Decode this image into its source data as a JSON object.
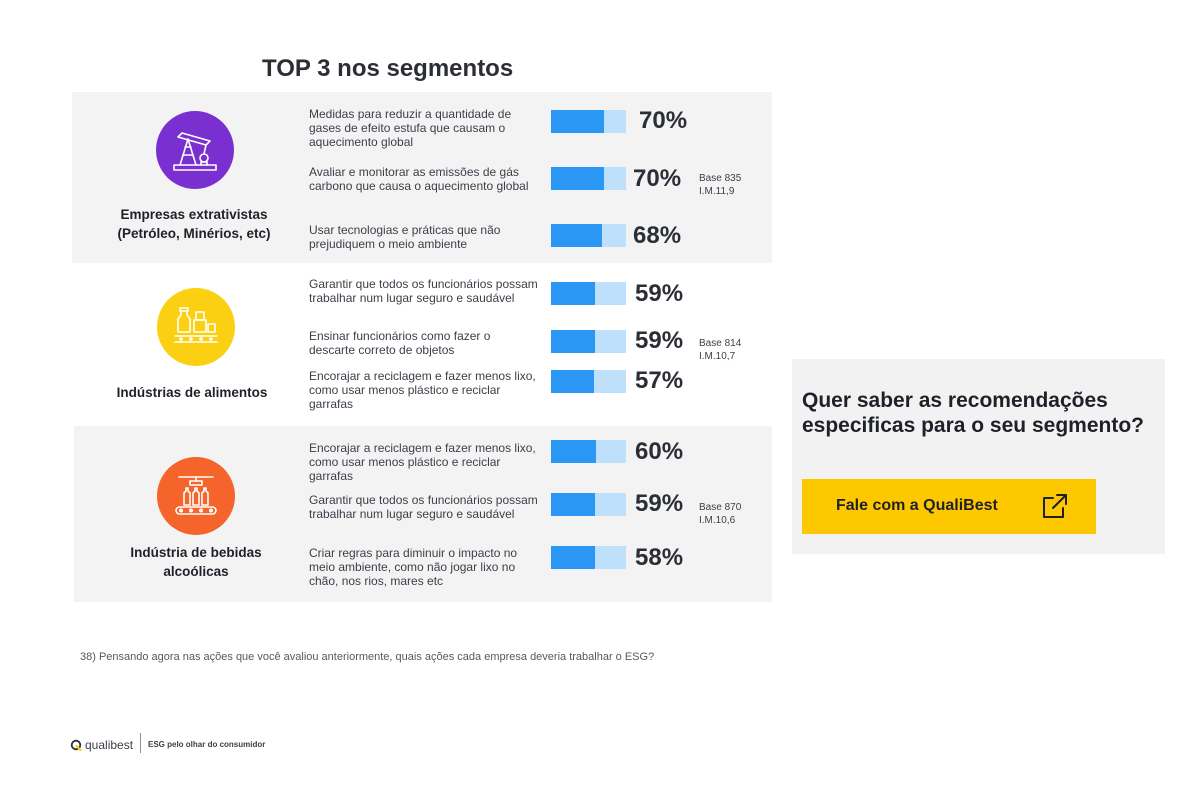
{
  "title": "TOP 3 nos segmentos",
  "colors": {
    "bar_fill": "#2a97f5",
    "bar_track": "#bfe0fa",
    "segment_1": "#7a2fd0",
    "segment_2": "#fcd012",
    "segment_3": "#f5652b",
    "cta_button": "#fec800"
  },
  "chart_data": {
    "type": "bar",
    "orientation": "horizontal",
    "xlim": [
      0,
      100
    ],
    "unit": "%",
    "segments": [
      {
        "name": "Empresas extrativistas (Petróleo, Minérios, etc)",
        "icon": "oil-pump-icon",
        "base": "Base 835",
        "im": "I.M.11,9",
        "items": [
          {
            "label": "Medidas para reduzir a quantidade de gases de efeito estufa que causam o aquecimento global",
            "value": 70,
            "value_label": "70%"
          },
          {
            "label": "Avaliar e monitorar as emissões de gás carbono que causa o aquecimento global",
            "value": 70,
            "value_label": "70%"
          },
          {
            "label": "Usar tecnologias e práticas que não prejudiquem o meio ambiente",
            "value": 68,
            "value_label": "68%"
          }
        ]
      },
      {
        "name": "Indústrias de alimentos",
        "icon": "food-factory-icon",
        "base": "Base 814",
        "im": "I.M.10,7",
        "items": [
          {
            "label": "Garantir que todos os funcionários possam trabalhar num lugar seguro e saudável",
            "value": 59,
            "value_label": "59%"
          },
          {
            "label": "Ensinar funcionários como fazer o descarte correto de objetos",
            "value": 59,
            "value_label": "59%"
          },
          {
            "label": "Encorajar a reciclagem e fazer menos lixo, como usar menos plástico e reciclar garrafas",
            "value": 57,
            "value_label": "57%"
          }
        ]
      },
      {
        "name": "Indústria de bebidas alcoólicas",
        "icon": "bottling-line-icon",
        "base": "Base 870",
        "im": "I.M.10,6",
        "items": [
          {
            "label": "Encorajar a reciclagem e fazer menos lixo, como usar menos plástico e reciclar garrafas",
            "value": 60,
            "value_label": "60%"
          },
          {
            "label": "Garantir que todos os funcionários possam trabalhar num lugar seguro e saudável",
            "value": 59,
            "value_label": "59%"
          },
          {
            "label": "Criar regras para diminuir o impacto no meio ambiente, como não jogar lixo no chão, nos rios, mares etc",
            "value": 58,
            "value_label": "58%"
          }
        ]
      }
    ]
  },
  "cta": {
    "text": "Quer saber as recomendações especificas para o seu segmento?",
    "button_label": "Fale com a QualiBest",
    "button_icon": "external-link-icon"
  },
  "footnote": "38) Pensando agora nas ações que você avaliou anteriormente, quais ações cada empresa deveria trabalhar o ESG?",
  "footer": {
    "logo": "qualibest",
    "tagline": "ESG pelo olhar do consumidor"
  }
}
